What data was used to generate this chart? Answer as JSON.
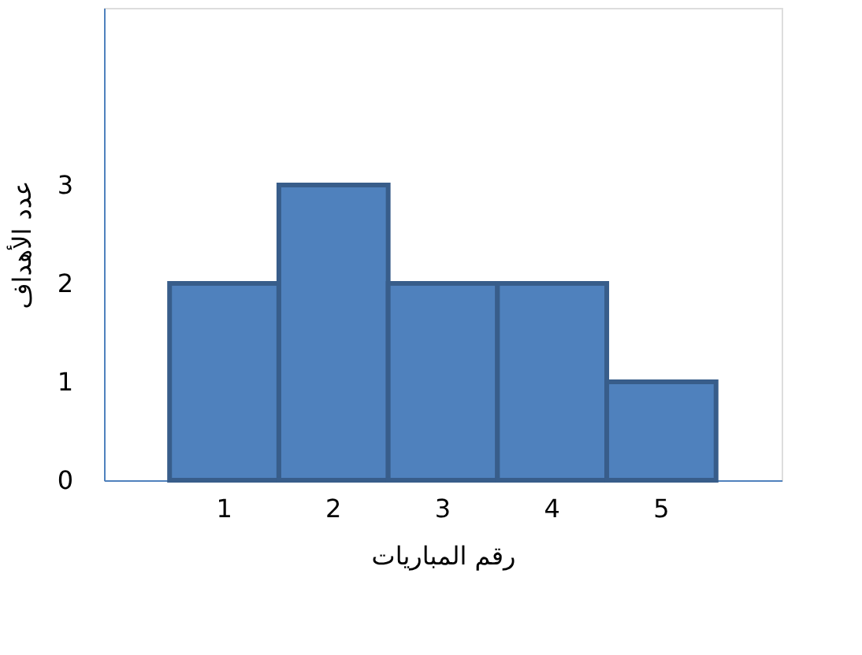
{
  "chart_data": {
    "type": "bar",
    "xlabel": "رقم المباريات",
    "ylabel": "عدد الأهداف",
    "categories": [
      "1",
      "2",
      "3",
      "4",
      "5"
    ],
    "values": [
      2,
      3,
      2,
      2,
      1
    ],
    "color": "#4f81bd",
    "ylim": [
      0,
      4.8
    ],
    "yticks": [
      0,
      1,
      2,
      3
    ],
    "grid": false
  }
}
